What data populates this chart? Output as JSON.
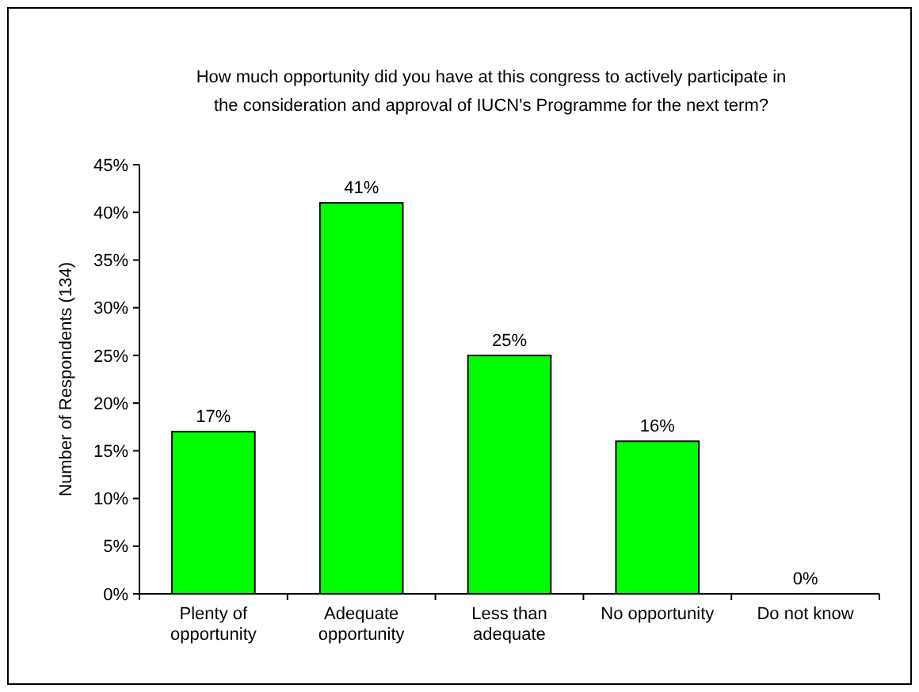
{
  "chart_data": {
    "type": "bar",
    "title": "How much opportunity did you have at this congress to actively participate in the consideration and approval of IUCN's Programme for the next term?",
    "ylabel": "Number of Respondents (134)",
    "categories": [
      "Plenty of opportunity",
      "Adequate opportunity",
      "Less than adequate",
      "No opportunity",
      "Do not know"
    ],
    "values": [
      17,
      41,
      25,
      16,
      0
    ],
    "value_labels": [
      "17%",
      "41%",
      "25%",
      "16%",
      "0%"
    ],
    "color": "#00ff00",
    "ylim": [
      0,
      45
    ],
    "yticks": [
      {
        "value": 0,
        "label": "0%"
      },
      {
        "value": 5,
        "label": "5%"
      },
      {
        "value": 10,
        "label": "10%"
      },
      {
        "value": 15,
        "label": "15%"
      },
      {
        "value": 20,
        "label": "20%"
      },
      {
        "value": 25,
        "label": "25%"
      },
      {
        "value": 30,
        "label": "30%"
      },
      {
        "value": 35,
        "label": "35%"
      },
      {
        "value": 40,
        "label": "40%"
      },
      {
        "value": 45,
        "label": "45%"
      }
    ],
    "grid": false
  }
}
